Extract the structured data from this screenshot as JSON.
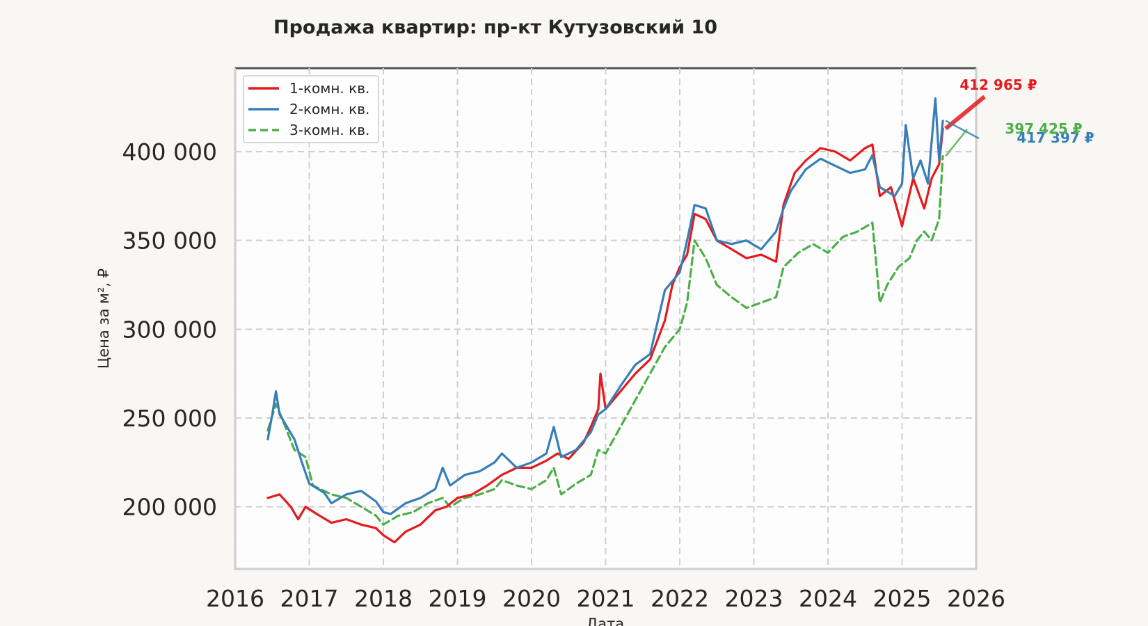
{
  "chart_data": {
    "type": "line",
    "title": "Продажа квартир: пр-кт Кутузовский 10",
    "xlabel": "Дата",
    "ylabel": "Цена за м², ₽",
    "xlim": [
      2016,
      2026
    ],
    "ylim": [
      165000,
      447000
    ],
    "x_ticks": [
      "2016",
      "2017",
      "2018",
      "2019",
      "2020",
      "2021",
      "2022",
      "2023",
      "2024",
      "2025",
      "2026"
    ],
    "y_ticks": [
      "200 000",
      "250 000",
      "300 000",
      "350 000",
      "400 000"
    ],
    "grid": true,
    "legend_position": "top-left",
    "series": [
      {
        "name": "1-комн. кв.",
        "color": "#e41a1c",
        "style": "solid",
        "final_label": "412 965 ₽",
        "points": [
          [
            2016.44,
            205000
          ],
          [
            2016.6,
            207000
          ],
          [
            2016.75,
            200000
          ],
          [
            2016.85,
            193000
          ],
          [
            2016.95,
            200000
          ],
          [
            2017.1,
            196000
          ],
          [
            2017.3,
            191000
          ],
          [
            2017.5,
            193000
          ],
          [
            2017.7,
            190000
          ],
          [
            2017.9,
            188000
          ],
          [
            2018.0,
            184000
          ],
          [
            2018.15,
            180000
          ],
          [
            2018.3,
            186000
          ],
          [
            2018.5,
            190000
          ],
          [
            2018.7,
            198000
          ],
          [
            2018.85,
            200000
          ],
          [
            2019.0,
            205000
          ],
          [
            2019.2,
            207000
          ],
          [
            2019.4,
            212000
          ],
          [
            2019.6,
            218000
          ],
          [
            2019.8,
            222000
          ],
          [
            2020.0,
            222000
          ],
          [
            2020.2,
            226000
          ],
          [
            2020.35,
            230000
          ],
          [
            2020.5,
            227000
          ],
          [
            2020.7,
            236000
          ],
          [
            2020.8,
            245000
          ],
          [
            2020.9,
            255000
          ],
          [
            2020.93,
            275000
          ],
          [
            2021.0,
            255000
          ],
          [
            2021.2,
            265000
          ],
          [
            2021.4,
            275000
          ],
          [
            2021.6,
            283000
          ],
          [
            2021.8,
            305000
          ],
          [
            2021.9,
            325000
          ],
          [
            2022.0,
            335000
          ],
          [
            2022.1,
            342000
          ],
          [
            2022.2,
            365000
          ],
          [
            2022.35,
            362000
          ],
          [
            2022.5,
            350000
          ],
          [
            2022.7,
            345000
          ],
          [
            2022.9,
            340000
          ],
          [
            2023.1,
            342000
          ],
          [
            2023.3,
            338000
          ],
          [
            2023.4,
            370000
          ],
          [
            2023.55,
            388000
          ],
          [
            2023.7,
            395000
          ],
          [
            2023.9,
            402000
          ],
          [
            2024.1,
            400000
          ],
          [
            2024.3,
            395000
          ],
          [
            2024.5,
            402000
          ],
          [
            2024.6,
            404000
          ],
          [
            2024.7,
            375000
          ],
          [
            2024.85,
            380000
          ],
          [
            2025.0,
            358000
          ],
          [
            2025.15,
            385000
          ],
          [
            2025.3,
            368000
          ],
          [
            2025.4,
            385000
          ],
          [
            2025.5,
            393000
          ],
          [
            2025.55,
            412965
          ]
        ]
      },
      {
        "name": "2-комн. кв.",
        "color": "#377eb8",
        "style": "solid",
        "final_label": "417 397 ₽",
        "points": [
          [
            2016.44,
            238000
          ],
          [
            2016.5,
            252000
          ],
          [
            2016.55,
            265000
          ],
          [
            2016.6,
            252000
          ],
          [
            2016.7,
            245000
          ],
          [
            2016.8,
            238000
          ],
          [
            2016.9,
            225000
          ],
          [
            2017.0,
            213000
          ],
          [
            2017.2,
            208000
          ],
          [
            2017.3,
            202000
          ],
          [
            2017.5,
            207000
          ],
          [
            2017.7,
            209000
          ],
          [
            2017.9,
            203000
          ],
          [
            2018.0,
            197000
          ],
          [
            2018.1,
            196000
          ],
          [
            2018.3,
            202000
          ],
          [
            2018.5,
            205000
          ],
          [
            2018.7,
            210000
          ],
          [
            2018.8,
            222000
          ],
          [
            2018.9,
            212000
          ],
          [
            2019.1,
            218000
          ],
          [
            2019.3,
            220000
          ],
          [
            2019.5,
            225000
          ],
          [
            2019.6,
            230000
          ],
          [
            2019.8,
            222000
          ],
          [
            2020.0,
            225000
          ],
          [
            2020.2,
            230000
          ],
          [
            2020.3,
            245000
          ],
          [
            2020.4,
            228000
          ],
          [
            2020.6,
            232000
          ],
          [
            2020.8,
            242000
          ],
          [
            2020.9,
            252000
          ],
          [
            2021.0,
            255000
          ],
          [
            2021.2,
            268000
          ],
          [
            2021.4,
            280000
          ],
          [
            2021.6,
            286000
          ],
          [
            2021.8,
            322000
          ],
          [
            2022.0,
            332000
          ],
          [
            2022.1,
            350000
          ],
          [
            2022.2,
            370000
          ],
          [
            2022.35,
            368000
          ],
          [
            2022.5,
            350000
          ],
          [
            2022.7,
            348000
          ],
          [
            2022.9,
            350000
          ],
          [
            2023.1,
            345000
          ],
          [
            2023.3,
            355000
          ],
          [
            2023.4,
            368000
          ],
          [
            2023.5,
            378000
          ],
          [
            2023.7,
            390000
          ],
          [
            2023.9,
            396000
          ],
          [
            2024.1,
            392000
          ],
          [
            2024.3,
            388000
          ],
          [
            2024.5,
            390000
          ],
          [
            2024.6,
            398000
          ],
          [
            2024.7,
            380000
          ],
          [
            2024.9,
            375000
          ],
          [
            2025.0,
            382000
          ],
          [
            2025.05,
            415000
          ],
          [
            2025.15,
            385000
          ],
          [
            2025.25,
            395000
          ],
          [
            2025.35,
            382000
          ],
          [
            2025.45,
            430000
          ],
          [
            2025.5,
            395000
          ],
          [
            2025.55,
            417397
          ]
        ]
      },
      {
        "name": "3-комн. кв.",
        "color": "#4daf4a",
        "style": "dashed",
        "final_label": "397 425 ₽",
        "points": [
          [
            2016.44,
            243000
          ],
          [
            2016.55,
            258000
          ],
          [
            2016.65,
            248000
          ],
          [
            2016.8,
            232000
          ],
          [
            2016.95,
            228000
          ],
          [
            2017.05,
            212000
          ],
          [
            2017.3,
            207000
          ],
          [
            2017.5,
            205000
          ],
          [
            2017.7,
            200000
          ],
          [
            2017.9,
            195000
          ],
          [
            2018.0,
            190000
          ],
          [
            2018.2,
            195000
          ],
          [
            2018.4,
            197000
          ],
          [
            2018.6,
            202000
          ],
          [
            2018.8,
            205000
          ],
          [
            2018.9,
            200000
          ],
          [
            2019.1,
            205000
          ],
          [
            2019.3,
            207000
          ],
          [
            2019.5,
            210000
          ],
          [
            2019.6,
            215000
          ],
          [
            2019.8,
            212000
          ],
          [
            2020.0,
            210000
          ],
          [
            2020.2,
            215000
          ],
          [
            2020.3,
            222000
          ],
          [
            2020.4,
            207000
          ],
          [
            2020.6,
            213000
          ],
          [
            2020.8,
            218000
          ],
          [
            2020.9,
            232000
          ],
          [
            2021.0,
            230000
          ],
          [
            2021.2,
            245000
          ],
          [
            2021.4,
            260000
          ],
          [
            2021.6,
            275000
          ],
          [
            2021.8,
            290000
          ],
          [
            2022.0,
            300000
          ],
          [
            2022.1,
            315000
          ],
          [
            2022.2,
            350000
          ],
          [
            2022.35,
            340000
          ],
          [
            2022.5,
            325000
          ],
          [
            2022.7,
            318000
          ],
          [
            2022.9,
            312000
          ],
          [
            2023.1,
            315000
          ],
          [
            2023.3,
            318000
          ],
          [
            2023.4,
            335000
          ],
          [
            2023.6,
            343000
          ],
          [
            2023.8,
            348000
          ],
          [
            2024.0,
            343000
          ],
          [
            2024.2,
            352000
          ],
          [
            2024.4,
            355000
          ],
          [
            2024.6,
            360000
          ],
          [
            2024.7,
            315000
          ],
          [
            2024.8,
            325000
          ],
          [
            2024.95,
            335000
          ],
          [
            2025.1,
            340000
          ],
          [
            2025.2,
            350000
          ],
          [
            2025.3,
            355000
          ],
          [
            2025.4,
            350000
          ],
          [
            2025.5,
            362000
          ],
          [
            2025.55,
            397425
          ]
        ]
      }
    ]
  }
}
